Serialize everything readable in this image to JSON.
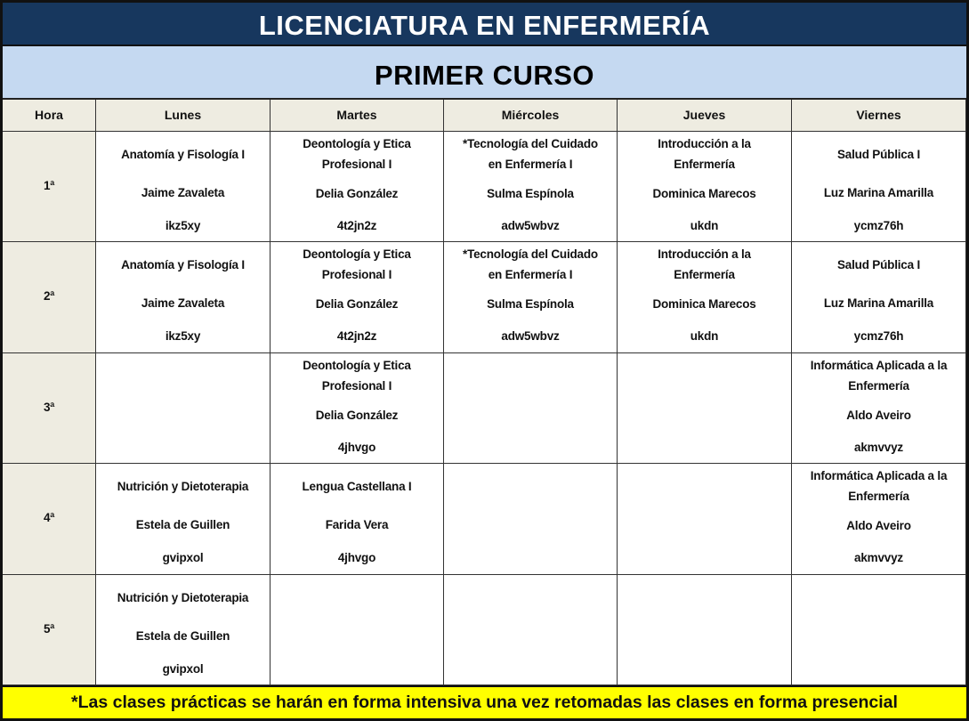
{
  "title": "LICENCIATURA EN ENFERMERÍA",
  "subtitle": "PRIMER CURSO",
  "headers": [
    "Hora",
    "Lunes",
    "Martes",
    "Miércoles",
    "Jueves",
    "Viernes"
  ],
  "colors": {
    "title_bg": "#17375e",
    "subtitle_bg": "#c5d9f1",
    "header_bg": "#eeece1",
    "footer_bg": "#ffff00"
  },
  "rows": [
    {
      "hora": "1ª",
      "cells": [
        {
          "subject_lines": [
            "Anatomía y Fisología I"
          ],
          "teacher": "Jaime Zavaleta",
          "code": "ikz5xy"
        },
        {
          "subject_lines": [
            "Deontología y Etica",
            "Profesional I"
          ],
          "teacher": "Delia González",
          "code": "4t2jn2z"
        },
        {
          "subject_lines": [
            "*Tecnología del Cuidado",
            "en Enfermería I"
          ],
          "teacher": "Sulma Espínola",
          "code": "adw5wbvz"
        },
        {
          "subject_lines": [
            "Introducción a la",
            "Enfermería"
          ],
          "teacher": "Dominica Marecos",
          "code": "ukdn"
        },
        {
          "subject_lines": [
            "Salud Pública I"
          ],
          "teacher": "Luz Marina Amarilla",
          "code": "ycmz76h"
        }
      ]
    },
    {
      "hora": "2ª",
      "cells": [
        {
          "subject_lines": [
            "Anatomía y Fisología I"
          ],
          "teacher": "Jaime Zavaleta",
          "code": "ikz5xy"
        },
        {
          "subject_lines": [
            "Deontología y Etica",
            "Profesional I"
          ],
          "teacher": "Delia González",
          "code": "4t2jn2z"
        },
        {
          "subject_lines": [
            "*Tecnología del Cuidado",
            "en Enfermería I"
          ],
          "teacher": "Sulma Espínola",
          "code": "adw5wbvz"
        },
        {
          "subject_lines": [
            "Introducción a la",
            "Enfermería"
          ],
          "teacher": "Dominica Marecos",
          "code": "ukdn"
        },
        {
          "subject_lines": [
            "Salud Pública I"
          ],
          "teacher": "Luz Marina Amarilla",
          "code": "ycmz76h"
        }
      ]
    },
    {
      "hora": "3ª",
      "cells": [
        null,
        {
          "subject_lines": [
            "Deontología y Etica",
            "Profesional I"
          ],
          "teacher": "Delia González",
          "code": "4jhvgo"
        },
        null,
        null,
        {
          "subject_lines": [
            "Informática Aplicada a la",
            "Enfermería"
          ],
          "teacher": "Aldo Aveiro",
          "code": "akmvvyz"
        }
      ]
    },
    {
      "hora": "4ª",
      "cells": [
        {
          "subject_lines": [
            "Nutrición y Dietoterapia"
          ],
          "teacher": "Estela de Guillen",
          "code": "gvipxol"
        },
        {
          "subject_lines": [
            "Lengua Castellana I"
          ],
          "teacher": "Farida Vera",
          "code": "4jhvgo"
        },
        null,
        null,
        {
          "subject_lines": [
            "Informática Aplicada a la",
            "Enfermería"
          ],
          "teacher": "Aldo Aveiro",
          "code": "akmvvyz"
        }
      ]
    },
    {
      "hora": "5ª",
      "cells": [
        {
          "subject_lines": [
            "Nutrición y Dietoterapia"
          ],
          "teacher": "Estela de Guillen",
          "code": "gvipxol"
        },
        null,
        null,
        null,
        null
      ]
    }
  ],
  "footer": "*Las clases prácticas  se harán  en forma intensiva una vez  retomadas las clases en forma presencial"
}
